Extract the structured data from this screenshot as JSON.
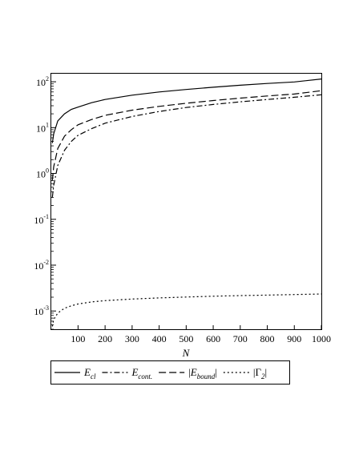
{
  "chart_data": {
    "type": "line",
    "title": "",
    "xlabel": "N",
    "ylabel": "",
    "xlim": [
      1,
      1000
    ],
    "ylim": [
      0.0004,
      150
    ],
    "y_scale": "log",
    "grid": false,
    "legend_position": "bottom",
    "x_ticks": [
      {
        "value": 100,
        "label": "100"
      },
      {
        "value": 200,
        "label": "200"
      },
      {
        "value": 300,
        "label": "300"
      },
      {
        "value": 400,
        "label": "400"
      },
      {
        "value": 500,
        "label": "500"
      },
      {
        "value": 600,
        "label": "600"
      },
      {
        "value": 700,
        "label": "700"
      },
      {
        "value": 800,
        "label": "800"
      },
      {
        "value": 900,
        "label": "900"
      },
      {
        "value": 1000,
        "label": "1000"
      }
    ],
    "y_ticks": [
      {
        "value": 100,
        "base": "10",
        "exp": "2"
      },
      {
        "value": 10,
        "base": "10",
        "exp": "1"
      },
      {
        "value": 1,
        "base": "10",
        "exp": "0"
      },
      {
        "value": 0.1,
        "base": "10",
        "exp": "-1"
      },
      {
        "value": 0.01,
        "base": "10",
        "exp": "-2"
      },
      {
        "value": 0.001,
        "base": "10",
        "exp": "-3"
      }
    ],
    "x": [
      5,
      10,
      25,
      50,
      75,
      100,
      150,
      200,
      300,
      400,
      500,
      600,
      700,
      800,
      900,
      1000
    ],
    "series": [
      {
        "key": "ecl",
        "legend": {
          "sym": "E",
          "sub": "cl",
          "abs": false
        },
        "style": "solid",
        "color": "#000000",
        "values": [
          4.6,
          7.3,
          14,
          20,
          25,
          28,
          35,
          41,
          51,
          60,
          68,
          76,
          84,
          92,
          99,
          115
        ]
      },
      {
        "key": "econt",
        "legend": {
          "sym": "E",
          "sub": "cont.",
          "abs": false
        },
        "style": "dashdot",
        "color": "#000000",
        "values": [
          0.3,
          0.55,
          1.5,
          3.2,
          5.0,
          6.8,
          9.5,
          12.5,
          17.5,
          22.5,
          27.5,
          32,
          36.5,
          41,
          46,
          52
        ]
      },
      {
        "key": "ebound",
        "legend": {
          "sym": "E",
          "sub": "bound",
          "abs": true
        },
        "style": "dash",
        "color": "#000000",
        "values": [
          0.7,
          1.4,
          3.5,
          6.5,
          9,
          11.5,
          15,
          18.5,
          24,
          29,
          34,
          39,
          44,
          49,
          54,
          64
        ]
      },
      {
        "key": "gamma2",
        "legend": {
          "sym": "Γ",
          "sub": "2",
          "abs": true
        },
        "style": "dot",
        "color": "#000000",
        "values": [
          0.00046,
          0.00065,
          0.0009,
          0.00115,
          0.0013,
          0.00142,
          0.00158,
          0.00168,
          0.00182,
          0.00193,
          0.00202,
          0.0021,
          0.00217,
          0.00222,
          0.00228,
          0.00235
        ]
      }
    ]
  }
}
